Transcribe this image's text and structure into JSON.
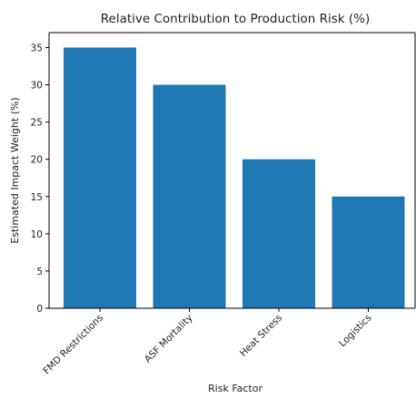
{
  "chart_data": {
    "type": "bar",
    "title": "Relative Contribution to Production Risk (%)",
    "xlabel": "Risk Factor",
    "ylabel": "Estimated Impact Weight (%)",
    "categories": [
      "FMD Restrictions",
      "ASF Mortality",
      "Heat Stress",
      "Logistics"
    ],
    "values": [
      35,
      30,
      20,
      15
    ],
    "ylim": [
      0,
      37
    ],
    "yticks": [
      0,
      5,
      10,
      15,
      20,
      25,
      30,
      35
    ],
    "bar_color": "#1f77b4",
    "grid": false,
    "legend": "none"
  }
}
